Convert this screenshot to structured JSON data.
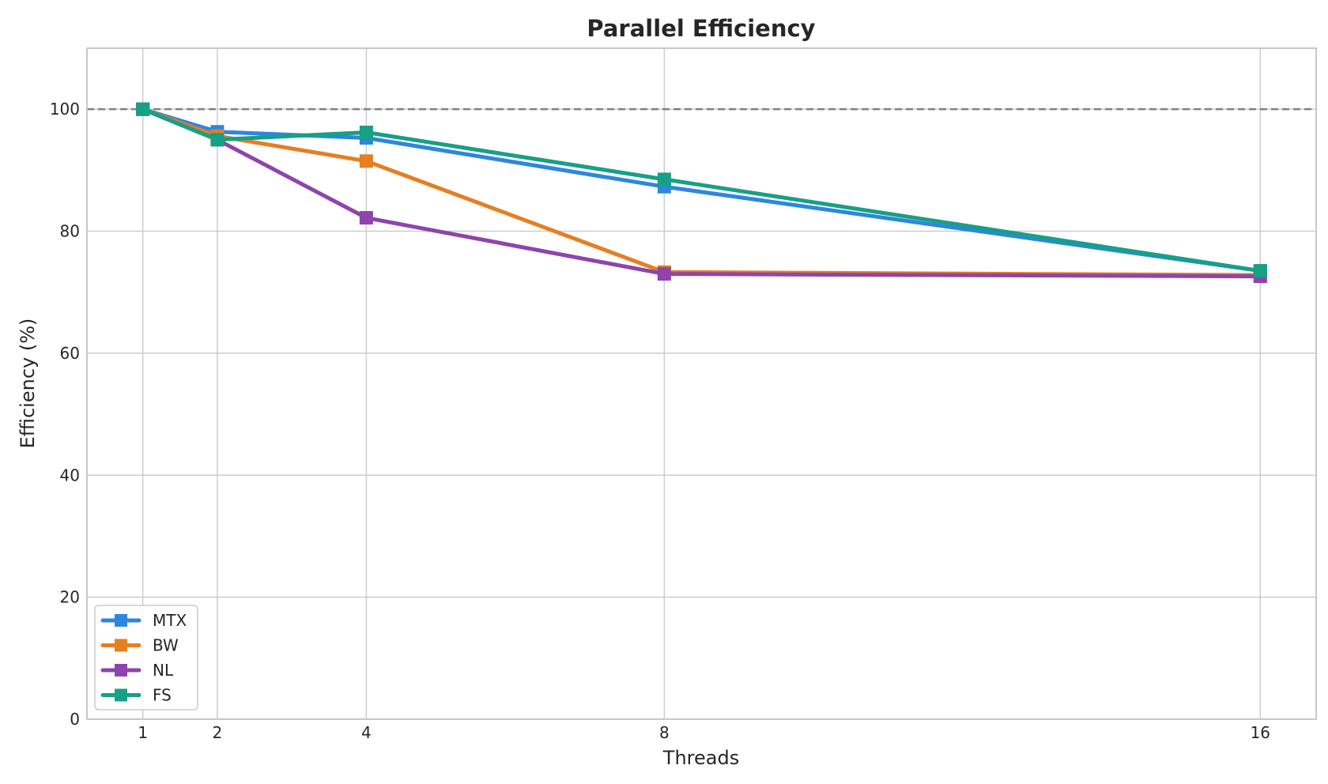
{
  "chart_data": {
    "type": "line",
    "title": "Parallel Efficiency",
    "xlabel": "Threads",
    "ylabel": "Efficiency (%)",
    "x": [
      1,
      2,
      4,
      8,
      16
    ],
    "xticks": [
      "1",
      "2",
      "4",
      "8",
      "16"
    ],
    "yticks": [
      "0",
      "20",
      "40",
      "60",
      "80",
      "100"
    ],
    "ytick_values": [
      0,
      20,
      40,
      60,
      80,
      100
    ],
    "xlim": [
      0.25,
      16.75
    ],
    "ylim": [
      0,
      110
    ],
    "reference_line": 100,
    "grid": true,
    "legend_position": "lower-left",
    "marker": "square",
    "series": [
      {
        "name": "MTX",
        "color": "#2e86de",
        "values": [
          100,
          96.3,
          95.3,
          87.3,
          73.5
        ]
      },
      {
        "name": "BW",
        "color": "#e67e22",
        "values": [
          100,
          95.6,
          91.5,
          73.3,
          72.8
        ]
      },
      {
        "name": "NL",
        "color": "#8e44ad",
        "values": [
          100,
          95.0,
          82.2,
          73.0,
          72.6
        ]
      },
      {
        "name": "FS",
        "color": "#16a085",
        "values": [
          100,
          95.0,
          96.2,
          88.5,
          73.5
        ]
      }
    ]
  }
}
